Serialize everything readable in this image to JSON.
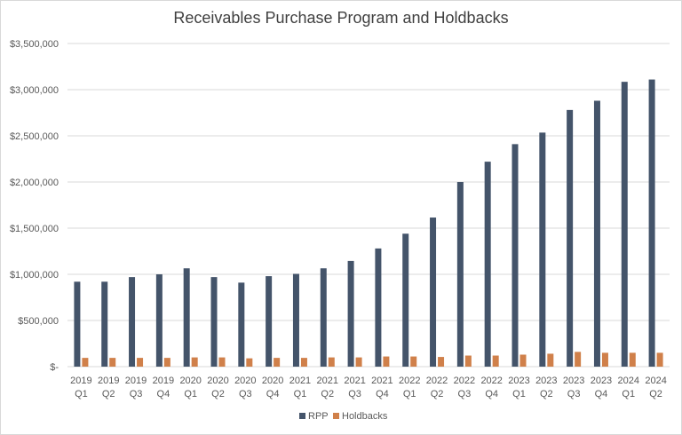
{
  "chart_data": {
    "type": "bar",
    "title": "Receivables Purchase Program and Holdbacks",
    "xlabel": "",
    "ylabel": "",
    "categories": [
      [
        "2019",
        "Q1"
      ],
      [
        "2019",
        "Q2"
      ],
      [
        "2019",
        "Q3"
      ],
      [
        "2019",
        "Q4"
      ],
      [
        "2020",
        "Q1"
      ],
      [
        "2020",
        "Q2"
      ],
      [
        "2020",
        "Q3"
      ],
      [
        "2020",
        "Q4"
      ],
      [
        "2021",
        "Q1"
      ],
      [
        "2021",
        "Q2"
      ],
      [
        "2021",
        "Q3"
      ],
      [
        "2021",
        "Q4"
      ],
      [
        "2022",
        "Q1"
      ],
      [
        "2022",
        "Q2"
      ],
      [
        "2022",
        "Q3"
      ],
      [
        "2022",
        "Q4"
      ],
      [
        "2023",
        "Q1"
      ],
      [
        "2023",
        "Q2"
      ],
      [
        "2023",
        "Q3"
      ],
      [
        "2023",
        "Q4"
      ],
      [
        "2024",
        "Q1"
      ],
      [
        "2024",
        "Q2"
      ]
    ],
    "series": [
      {
        "name": "RPP",
        "color": "#44546a",
        "values": [
          920000,
          920000,
          970000,
          1000000,
          1065000,
          970000,
          910000,
          980000,
          1005000,
          1065000,
          1145000,
          1280000,
          1440000,
          1615000,
          2000000,
          2220000,
          2410000,
          2535000,
          2780000,
          2880000,
          3085000,
          3110000
        ]
      },
      {
        "name": "Holdbacks",
        "color": "#d0804a",
        "values": [
          95000,
          95000,
          95000,
          95000,
          100000,
          100000,
          90000,
          95000,
          95000,
          100000,
          100000,
          110000,
          110000,
          105000,
          120000,
          120000,
          130000,
          140000,
          160000,
          150000,
          150000,
          150000
        ]
      }
    ],
    "ylim": [
      0,
      3500000
    ],
    "yticks": [
      0,
      500000,
      1000000,
      1500000,
      2000000,
      2500000,
      3000000,
      3500000
    ],
    "ytick_labels": [
      "$-",
      "$500,000",
      "$1,000,000",
      "$1,500,000",
      "$2,000,000",
      "$2,500,000",
      "$3,000,000",
      "$3,500,000"
    ],
    "grid": true,
    "legend_position": "bottom-center"
  }
}
